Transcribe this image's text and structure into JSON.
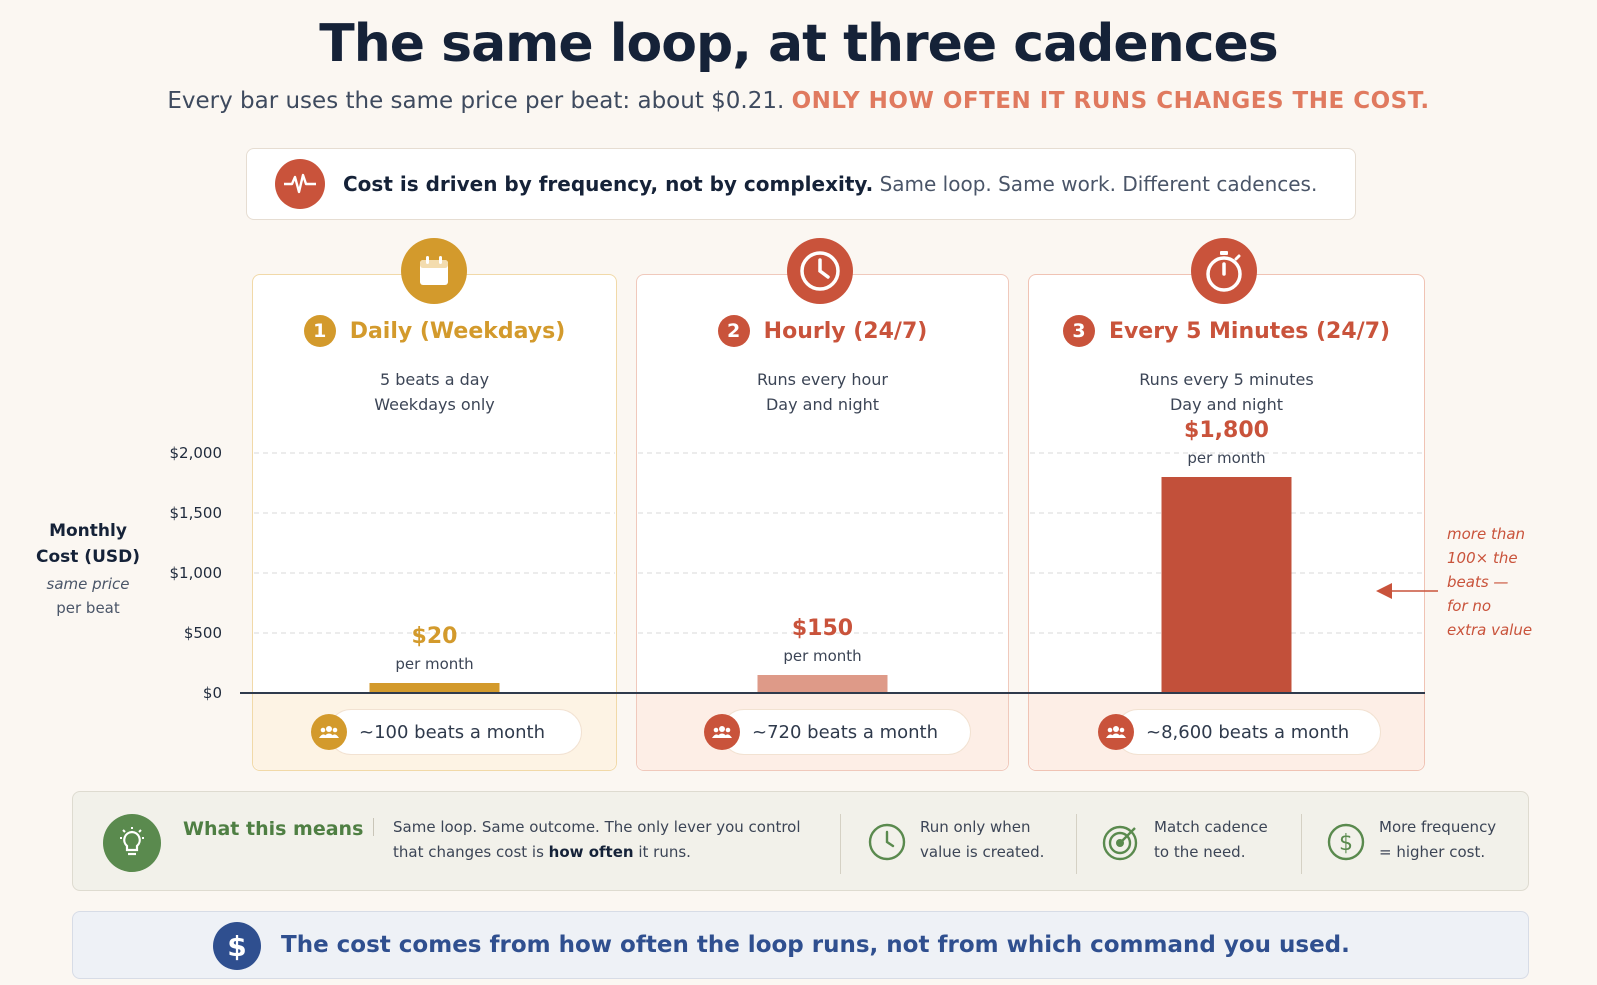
{
  "header": {
    "title": "The same loop, at three cadences",
    "subtitle_main": "Every bar uses the same price per beat: about $0.21.",
    "subtitle_accent": "ONLY HOW OFTEN IT RUNS CHANGES THE COST."
  },
  "banner": {
    "bold": "Cost is driven by frequency, not by complexity.",
    "rest": "Same loop. Same work. Different cadences.",
    "icon": "heartbeat-icon"
  },
  "axis": {
    "title_line1": "Monthly",
    "title_line2": "Cost (USD)",
    "sub_line1": "same price",
    "sub_line2": "per beat"
  },
  "panels": [
    {
      "number": "1",
      "title": "Daily (Weekdays)",
      "desc_line1": "5 beats a day",
      "desc_line2": "Weekdays only",
      "value_label": "$20",
      "per_month": "per month",
      "beats": "~100 beats a month",
      "icon": "calendar-icon",
      "color": "#d39a2c",
      "bar_color": "#d39a2c"
    },
    {
      "number": "2",
      "title": "Hourly (24/7)",
      "desc_line1": "Runs every hour",
      "desc_line2": "Day and night",
      "value_label": "$150",
      "per_month": "per month",
      "beats": "~720 beats a month",
      "icon": "clock-icon",
      "color": "#c9533b",
      "bar_color": "#de9a88"
    },
    {
      "number": "3",
      "title": "Every 5 Minutes (24/7)",
      "desc_line1": "Runs every 5 minutes",
      "desc_line2": "Day and night",
      "value_label": "$1,800",
      "per_month": "per month",
      "beats": "~8,600 beats a month",
      "icon": "stopwatch-icon",
      "color": "#c9533b",
      "bar_color": "#c2503a"
    }
  ],
  "annotation": {
    "line1": "more than",
    "line2": "100× the",
    "line3": "beats —",
    "line4": "for no",
    "line5": "extra value"
  },
  "means": {
    "title": "What this means",
    "main_prefix": "Same loop. Same outcome. The only lever you control that changes cost is ",
    "main_bold": "how often",
    "main_suffix": " it runs.",
    "tips": [
      {
        "line1": "Run only when",
        "line2": "value is created.",
        "icon": "clock-icon"
      },
      {
        "line1": "Match cadence",
        "line2": "to the need.",
        "icon": "target-icon"
      },
      {
        "line1": "More frequency",
        "line2": "= higher cost.",
        "icon": "dollar-icon"
      }
    ]
  },
  "bottom": {
    "icon_glyph": "$",
    "text": "The cost comes from how often the loop runs, not from which command you used."
  },
  "chart_data": {
    "type": "bar",
    "categories": [
      "Daily (Weekdays)",
      "Hourly (24/7)",
      "Every 5 Minutes (24/7)"
    ],
    "values": [
      20,
      150,
      1800
    ],
    "ylabel": "Monthly Cost (USD)",
    "yticks": [
      "$0",
      "$500",
      "$1,000",
      "$1,500",
      "$2,000"
    ],
    "ytick_values": [
      0,
      500,
      1000,
      1500,
      2000
    ],
    "ylim": [
      0,
      2000
    ],
    "grid": true
  }
}
